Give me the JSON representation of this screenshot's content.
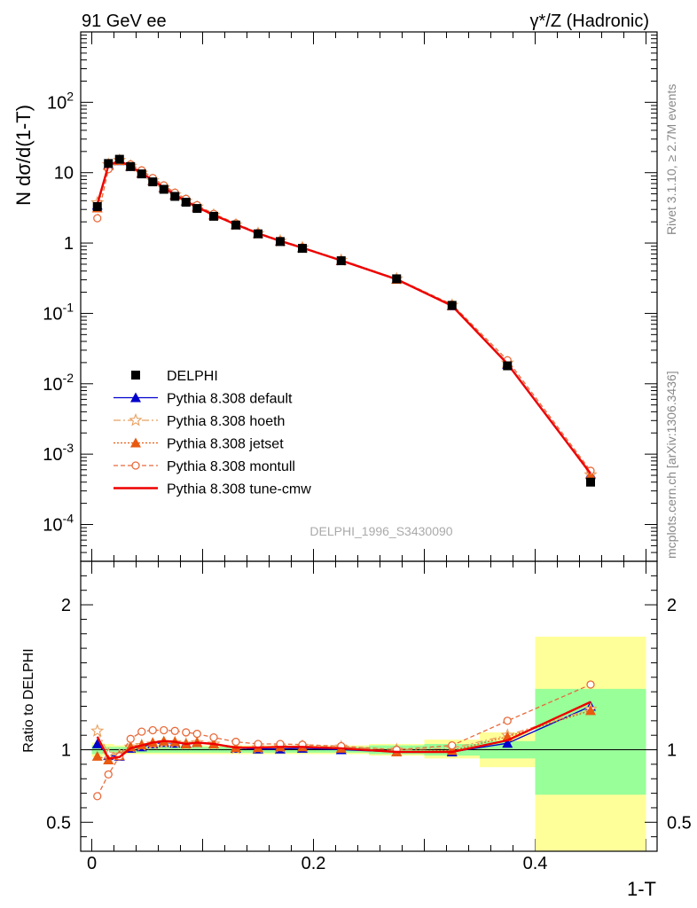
{
  "header": {
    "left": "91 GeV ee",
    "right": "γ*/Z (Hadronic)"
  },
  "side_labels": {
    "rivet": "Rivet 3.1.10, ≥ 2.7M events",
    "mcplots": "mcplots.cern.ch [arXiv:1306.3436]"
  },
  "analysis_id": "DELPHI_1996_S3430090",
  "chart_data": [
    {
      "type": "line",
      "panel": "main",
      "ylabel": "N dσ/d(1-T)",
      "yscale": "log",
      "ylim": [
        3e-05,
        1000
      ],
      "xlim": [
        -0.01,
        0.51
      ],
      "y_tick_labels": [
        "10^-4",
        "10^-3",
        "10^-2",
        "10^-1",
        "1",
        "10",
        "10^2"
      ],
      "legend_position": "lower-left",
      "colors": {
        "default": "#0000cc",
        "hoeth": "#e8a060",
        "jetset": "#e85a10",
        "montull": "#e86a3a",
        "tune-cmw": "#ee0000",
        "data": "#000000"
      },
      "x": [
        0.005,
        0.015,
        0.025,
        0.035,
        0.045,
        0.055,
        0.065,
        0.075,
        0.085,
        0.095,
        0.11,
        0.13,
        0.15,
        0.17,
        0.19,
        0.225,
        0.275,
        0.325,
        0.375,
        0.45
      ],
      "data": {
        "name": "DELPHI",
        "values": [
          3.3,
          13.5,
          15.5,
          12.2,
          9.6,
          7.4,
          5.8,
          4.6,
          3.8,
          3.1,
          2.4,
          1.8,
          1.35,
          1.05,
          0.84,
          0.56,
          0.31,
          0.13,
          0.018,
          0.0004
        ]
      },
      "series": [
        {
          "name": "Pythia 8.308 default",
          "values": [
            3.45,
            13.0,
            14.8,
            12.3,
            9.8,
            7.7,
            6.1,
            4.8,
            3.95,
            3.25,
            2.5,
            1.82,
            1.36,
            1.06,
            0.855,
            0.56,
            0.305,
            0.128,
            0.0188,
            0.00052
          ]
        },
        {
          "name": "Pythia 8.308 hoeth",
          "values": [
            3.75,
            13.1,
            15.0,
            12.4,
            9.9,
            7.7,
            6.1,
            4.85,
            3.95,
            3.25,
            2.5,
            1.82,
            1.37,
            1.07,
            0.86,
            0.57,
            0.31,
            0.131,
            0.0198,
            0.00051
          ]
        },
        {
          "name": "Pythia 8.308 jetset",
          "values": [
            3.15,
            12.6,
            14.9,
            12.5,
            9.95,
            7.75,
            6.15,
            4.85,
            3.95,
            3.25,
            2.5,
            1.83,
            1.37,
            1.07,
            0.86,
            0.565,
            0.305,
            0.129,
            0.0196,
            0.00051
          ]
        },
        {
          "name": "Pythia 8.308 montull",
          "values": [
            2.25,
            11.2,
            14.8,
            13.1,
            10.8,
            8.4,
            6.6,
            5.2,
            4.25,
            3.45,
            2.6,
            1.9,
            1.4,
            1.09,
            0.87,
            0.575,
            0.31,
            0.134,
            0.0216,
            0.00058
          ]
        },
        {
          "name": "Pythia 8.308 tune-cmw",
          "values": [
            3.6,
            12.7,
            14.7,
            12.3,
            9.9,
            7.8,
            6.15,
            4.85,
            3.95,
            3.25,
            2.5,
            1.83,
            1.37,
            1.07,
            0.855,
            0.565,
            0.305,
            0.128,
            0.0192,
            0.00053
          ]
        }
      ]
    },
    {
      "type": "line",
      "panel": "ratio",
      "ylabel": "Ratio to DELPHI",
      "xlabel": "1-T",
      "ylim": [
        0.3,
        2.3
      ],
      "xlim": [
        -0.01,
        0.51
      ],
      "x_tick_labels": [
        "0",
        "0.2",
        "0.4"
      ],
      "y_tick_labels": [
        "0.5",
        "1",
        "2"
      ],
      "bin_edges": [
        0.0,
        0.01,
        0.02,
        0.03,
        0.04,
        0.05,
        0.06,
        0.07,
        0.08,
        0.09,
        0.1,
        0.12,
        0.14,
        0.16,
        0.18,
        0.2,
        0.25,
        0.3,
        0.35,
        0.4,
        0.5
      ],
      "band_green": [
        [
          0.97,
          1.03
        ],
        [
          0.98,
          1.02
        ],
        [
          0.98,
          1.02
        ],
        [
          0.98,
          1.02
        ],
        [
          0.98,
          1.02
        ],
        [
          0.98,
          1.02
        ],
        [
          0.98,
          1.02
        ],
        [
          0.98,
          1.02
        ],
        [
          0.98,
          1.02
        ],
        [
          0.98,
          1.02
        ],
        [
          0.98,
          1.02
        ],
        [
          0.98,
          1.02
        ],
        [
          0.98,
          1.02
        ],
        [
          0.98,
          1.02
        ],
        [
          0.98,
          1.02
        ],
        [
          0.98,
          1.02
        ],
        [
          0.97,
          1.03
        ],
        [
          0.96,
          1.04
        ],
        [
          0.94,
          1.06
        ],
        [
          0.69,
          1.42
        ]
      ],
      "band_yellow": [
        [
          0.95,
          1.05
        ],
        [
          0.96,
          1.04
        ],
        [
          0.97,
          1.03
        ],
        [
          0.97,
          1.03
        ],
        [
          0.97,
          1.03
        ],
        [
          0.97,
          1.03
        ],
        [
          0.97,
          1.03
        ],
        [
          0.97,
          1.03
        ],
        [
          0.97,
          1.03
        ],
        [
          0.97,
          1.03
        ],
        [
          0.97,
          1.03
        ],
        [
          0.97,
          1.03
        ],
        [
          0.97,
          1.03
        ],
        [
          0.97,
          1.03
        ],
        [
          0.97,
          1.03
        ],
        [
          0.97,
          1.03
        ],
        [
          0.96,
          1.04
        ],
        [
          0.94,
          1.07
        ],
        [
          0.88,
          1.12
        ],
        [
          0.3,
          1.78
        ]
      ],
      "x": [
        0.005,
        0.015,
        0.025,
        0.035,
        0.045,
        0.055,
        0.065,
        0.075,
        0.085,
        0.095,
        0.11,
        0.13,
        0.15,
        0.17,
        0.19,
        0.225,
        0.275,
        0.325,
        0.375,
        0.45
      ],
      "series": [
        {
          "name": "Pythia 8.308 default",
          "values": [
            1.04,
            0.96,
            0.955,
            1.01,
            1.02,
            1.04,
            1.05,
            1.045,
            1.045,
            1.05,
            1.04,
            1.01,
            1.005,
            1.005,
            1.01,
            1.0,
            0.985,
            0.985,
            1.045,
            1.3
          ]
        },
        {
          "name": "Pythia 8.308 hoeth",
          "values": [
            1.13,
            0.97,
            0.965,
            1.02,
            1.03,
            1.04,
            1.05,
            1.05,
            1.04,
            1.05,
            1.04,
            1.01,
            1.015,
            1.02,
            1.025,
            1.02,
            1.0,
            1.01,
            1.1,
            1.28
          ]
        },
        {
          "name": "Pythia 8.308 jetset",
          "values": [
            0.955,
            0.93,
            0.96,
            1.02,
            1.035,
            1.05,
            1.06,
            1.055,
            1.04,
            1.05,
            1.04,
            1.015,
            1.015,
            1.02,
            1.02,
            1.01,
            0.985,
            0.995,
            1.09,
            1.27
          ]
        },
        {
          "name": "Pythia 8.308 montull",
          "values": [
            0.68,
            0.83,
            0.955,
            1.075,
            1.125,
            1.135,
            1.135,
            1.13,
            1.12,
            1.11,
            1.085,
            1.055,
            1.04,
            1.04,
            1.035,
            1.025,
            1.0,
            1.03,
            1.2,
            1.45
          ]
        },
        {
          "name": "Pythia 8.308 tune-cmw",
          "values": [
            1.09,
            0.94,
            0.95,
            1.01,
            1.03,
            1.05,
            1.06,
            1.055,
            1.04,
            1.05,
            1.04,
            1.015,
            1.015,
            1.02,
            1.02,
            1.01,
            0.985,
            0.985,
            1.065,
            1.33
          ]
        }
      ]
    }
  ]
}
